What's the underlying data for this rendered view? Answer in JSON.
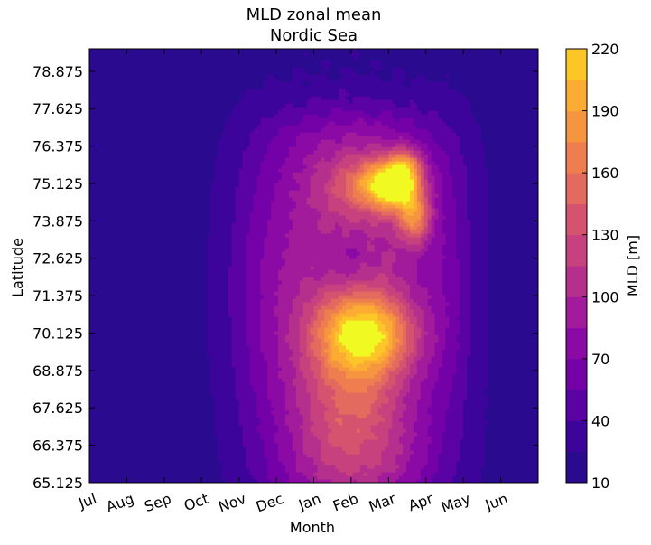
{
  "chart_data": {
    "type": "heatmap",
    "style": "filled-contour",
    "title": "MLD zonal mean",
    "subtitle": "Nordic Sea",
    "xlabel": "Month",
    "ylabel": "Latitude",
    "x_ticks": [
      "Jul",
      "Aug",
      "Sep",
      "Oct",
      "Nov",
      "Dec",
      "Jan",
      "Feb",
      "Mar",
      "Apr",
      "May",
      "Jun"
    ],
    "y_ticks": [
      "65.125",
      "66.375",
      "67.625",
      "68.875",
      "70.125",
      "71.375",
      "72.625",
      "73.875",
      "75.125",
      "76.375",
      "77.625",
      "78.875"
    ],
    "ylim": [
      65.125,
      79.625
    ],
    "colorbar": {
      "label": "MLD [m]",
      "levels": [
        10,
        25,
        40,
        55,
        70,
        85,
        100,
        115,
        130,
        145,
        160,
        175,
        190,
        205,
        220
      ],
      "tick_labels": [
        "10",
        "40",
        "70",
        "100",
        "130",
        "160",
        "190",
        "220"
      ],
      "colormap": "plasma",
      "colors": [
        "#2a0a8e",
        "#3d049b",
        "#5a02a3",
        "#7401a8",
        "#8b0aa5",
        "#a11b9b",
        "#b52f8c",
        "#c6417d",
        "#d5536f",
        "#e36a5e",
        "#ee7e4f",
        "#f69540",
        "#fcab33",
        "#fcc628",
        "#f0f921"
      ]
    },
    "grid": false,
    "features": {
      "baseline_mld": 18,
      "main_winter_blob": {
        "month_center": 7.1,
        "month_half_width": 2.3,
        "lat_low": 65.1,
        "lat_high": 72.6,
        "peak_mld": 110
      },
      "southern_deep_core": {
        "month": 7.4,
        "lat": 70.1,
        "peak_mld": 205
      },
      "northern_deep_core": {
        "month": 8.2,
        "lat": 75.1,
        "peak_mld": 220
      },
      "northern_flank_core": {
        "month": 8.7,
        "lat": 74.0,
        "peak_mld": 190
      }
    }
  }
}
